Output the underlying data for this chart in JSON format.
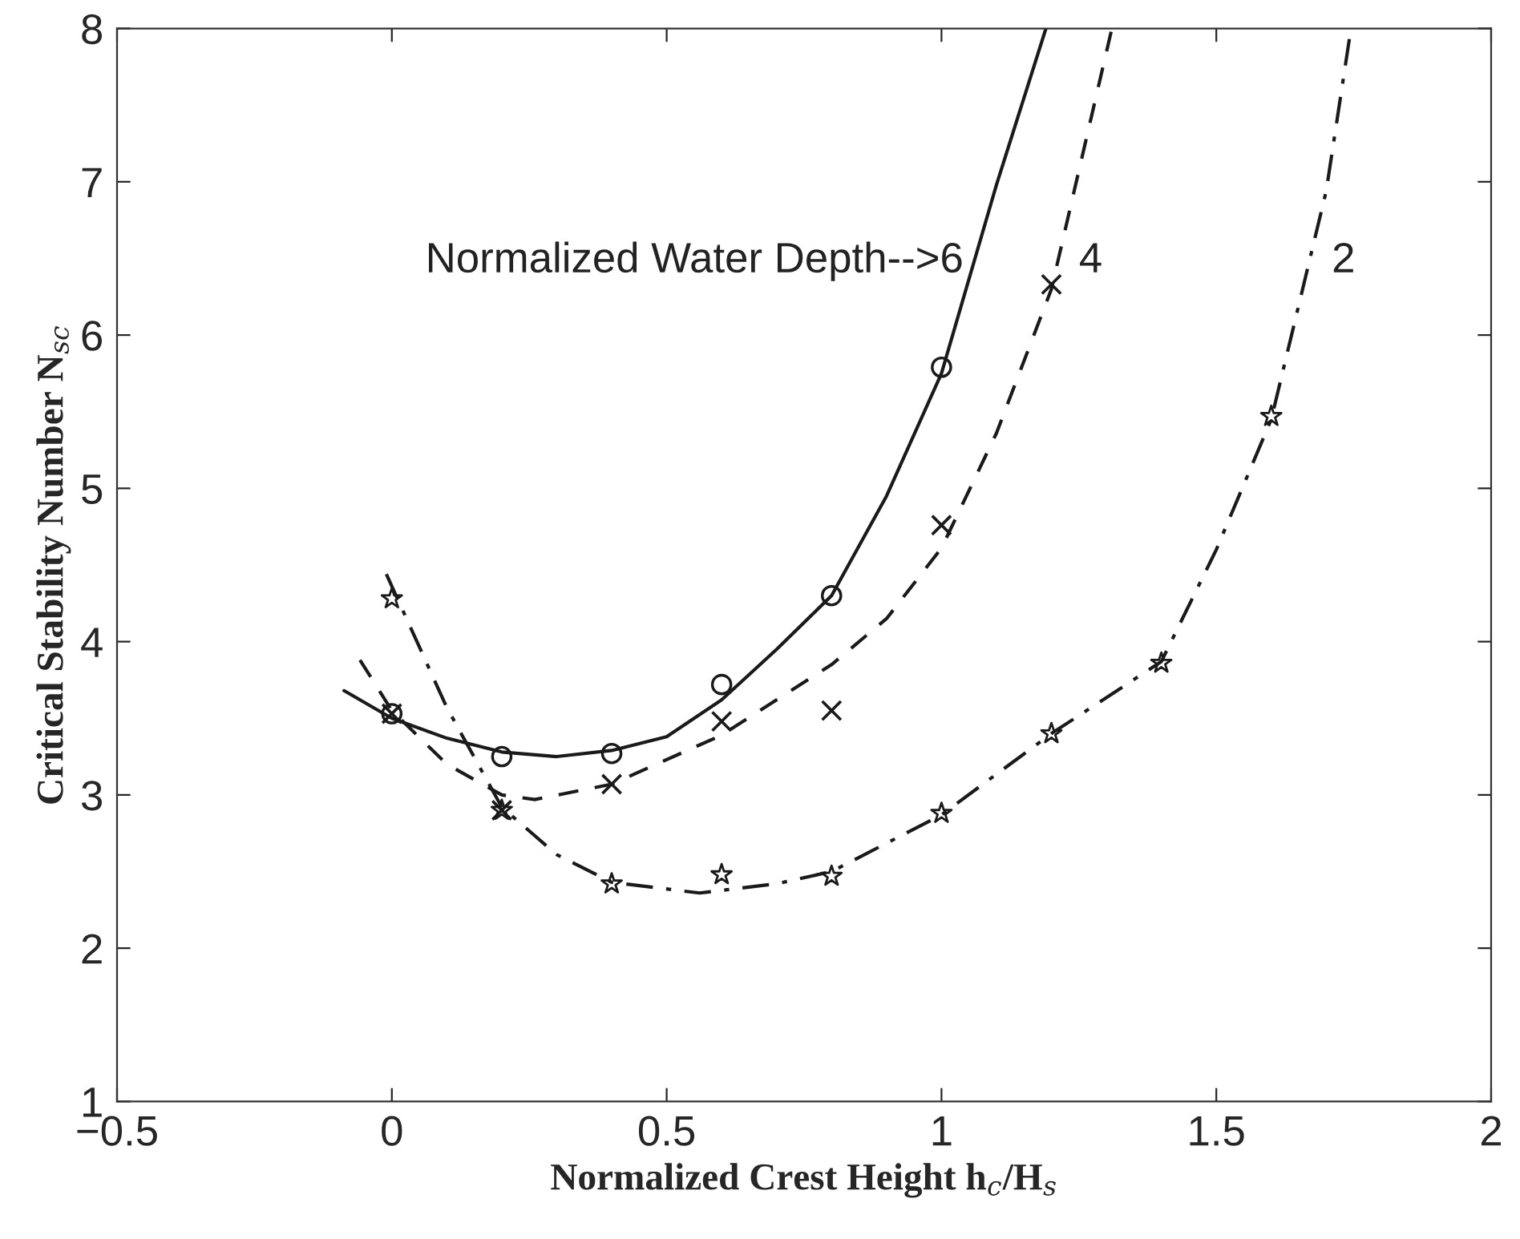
{
  "chart_data": {
    "type": "line",
    "xlabel": "Normalized Crest Height h$_{c}$/H$_{s}$",
    "ylabel": "Critical Stability Number N$_{sc}$",
    "xlim": [
      -0.5,
      2
    ],
    "xticks": [
      {
        "value": -0.5,
        "label": "−0.5"
      },
      0,
      0.5,
      1,
      1.5,
      2
    ],
    "ylim": [
      1,
      8
    ],
    "yticks": [
      1,
      2,
      3,
      4,
      5,
      6,
      7,
      8
    ],
    "grid": false,
    "legend": false,
    "series": [
      {
        "type": "line",
        "line_style": "solid",
        "color": "#1a1a1a",
        "x": [
          -0.087,
          0,
          0.1,
          0.2,
          0.3,
          0.4,
          0.5,
          0.6,
          0.7,
          0.8,
          0.9,
          1.0,
          1.1,
          1.19
        ],
        "values": [
          3.68,
          3.5,
          3.37,
          3.28,
          3.25,
          3.29,
          3.38,
          3.62,
          3.95,
          4.3,
          4.95,
          5.75,
          6.98,
          8
        ]
      },
      {
        "type": "line",
        "line_style": "dashed",
        "color": "#1a1a1a",
        "x": [
          -0.058,
          0,
          0.1,
          0.2,
          0.26,
          0.4,
          0.6,
          0.8,
          0.9,
          1.0,
          1.1,
          1.2,
          1.31
        ],
        "values": [
          3.88,
          3.55,
          3.2,
          3.0,
          2.97,
          3.07,
          3.39,
          3.85,
          4.15,
          4.61,
          5.36,
          6.3,
          8
        ]
      },
      {
        "type": "line",
        "line_style": "dashdot",
        "color": "#1a1a1a",
        "x": [
          -0.01,
          0.1,
          0.2,
          0.3,
          0.4,
          0.56,
          0.7,
          0.8,
          1.0,
          1.2,
          1.4,
          1.5,
          1.6,
          1.7,
          1.745
        ],
        "values": [
          4.44,
          3.57,
          2.92,
          2.61,
          2.43,
          2.36,
          2.42,
          2.5,
          2.87,
          3.4,
          3.87,
          4.6,
          5.45,
          6.94,
          8
        ]
      },
      {
        "type": "scatter",
        "marker": "circle",
        "color": "#1a1a1a",
        "x": [
          0,
          0.2,
          0.4,
          0.6,
          0.8,
          1.0
        ],
        "values": [
          3.53,
          3.25,
          3.27,
          3.72,
          4.3,
          5.79
        ]
      },
      {
        "type": "scatter",
        "marker": "cross",
        "color": "#1a1a1a",
        "x": [
          0,
          0.2,
          0.4,
          0.6,
          0.8,
          1.0,
          1.2
        ],
        "values": [
          3.53,
          2.9,
          3.07,
          3.48,
          3.55,
          4.76,
          6.33
        ]
      },
      {
        "type": "scatter",
        "marker": "star",
        "color": "#1a1a1a",
        "x": [
          0,
          0.2,
          0.4,
          0.6,
          0.8,
          1.0,
          1.2,
          1.4,
          1.6
        ],
        "values": [
          4.28,
          2.9,
          2.42,
          2.48,
          2.47,
          2.88,
          3.4,
          3.86,
          5.47
        ]
      }
    ],
    "annotations": [
      "Normalized Water Depth-->6",
      "4",
      "2"
    ]
  }
}
